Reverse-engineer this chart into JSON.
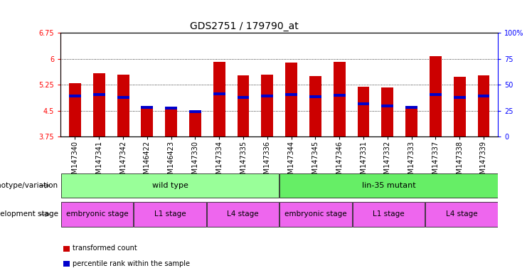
{
  "title": "GDS2751 / 179790_at",
  "samples": [
    "GSM147340",
    "GSM147341",
    "GSM147342",
    "GSM146422",
    "GSM146423",
    "GSM147330",
    "GSM147334",
    "GSM147335",
    "GSM147336",
    "GSM147344",
    "GSM147345",
    "GSM147346",
    "GSM147331",
    "GSM147332",
    "GSM147333",
    "GSM147337",
    "GSM147338",
    "GSM147339"
  ],
  "bar_values": [
    5.3,
    5.57,
    5.54,
    4.63,
    4.57,
    4.47,
    5.9,
    5.52,
    5.53,
    5.88,
    5.5,
    5.9,
    5.18,
    5.17,
    4.63,
    6.07,
    5.48,
    5.52
  ],
  "blue_values": [
    4.92,
    4.97,
    4.88,
    4.59,
    4.57,
    4.47,
    4.99,
    4.89,
    4.93,
    4.97,
    4.91,
    4.95,
    4.7,
    4.63,
    4.59,
    4.97,
    4.89,
    4.92
  ],
  "ymin": 3.75,
  "ymax": 6.75,
  "yticks": [
    3.75,
    4.5,
    5.25,
    6.0,
    6.75
  ],
  "ytick_labels": [
    "3.75",
    "4.5",
    "5.25",
    "6",
    "6.75"
  ],
  "grid_values": [
    4.5,
    5.25,
    6.0
  ],
  "right_yticks": [
    0,
    25,
    50,
    75,
    100
  ],
  "right_ytick_labels": [
    "0",
    "25",
    "50",
    "75",
    "100%"
  ],
  "bar_color": "#CC0000",
  "blue_color": "#0000CC",
  "bar_width": 0.5,
  "genotype_labels": [
    {
      "text": "wild type",
      "start": 0,
      "end": 8,
      "color": "#99FF99"
    },
    {
      "text": "lin-35 mutant",
      "start": 9,
      "end": 17,
      "color": "#66EE66"
    }
  ],
  "stage_labels": [
    {
      "text": "embryonic stage",
      "start": 0,
      "end": 2
    },
    {
      "text": "L1 stage",
      "start": 3,
      "end": 5
    },
    {
      "text": "L4 stage",
      "start": 6,
      "end": 8
    },
    {
      "text": "embryonic stage",
      "start": 9,
      "end": 11
    },
    {
      "text": "L1 stage",
      "start": 12,
      "end": 14
    },
    {
      "text": "L4 stage",
      "start": 15,
      "end": 17
    }
  ],
  "stage_color": "#EE66EE",
  "genotype_row_label": "genotype/variation",
  "stage_row_label": "development stage",
  "legend_items": [
    {
      "color": "#CC0000",
      "label": "transformed count"
    },
    {
      "color": "#0000CC",
      "label": "percentile rank within the sample"
    }
  ],
  "title_fontsize": 10,
  "tick_label_fontsize": 7,
  "row_label_fontsize": 7.5,
  "annotation_fontsize": 8
}
